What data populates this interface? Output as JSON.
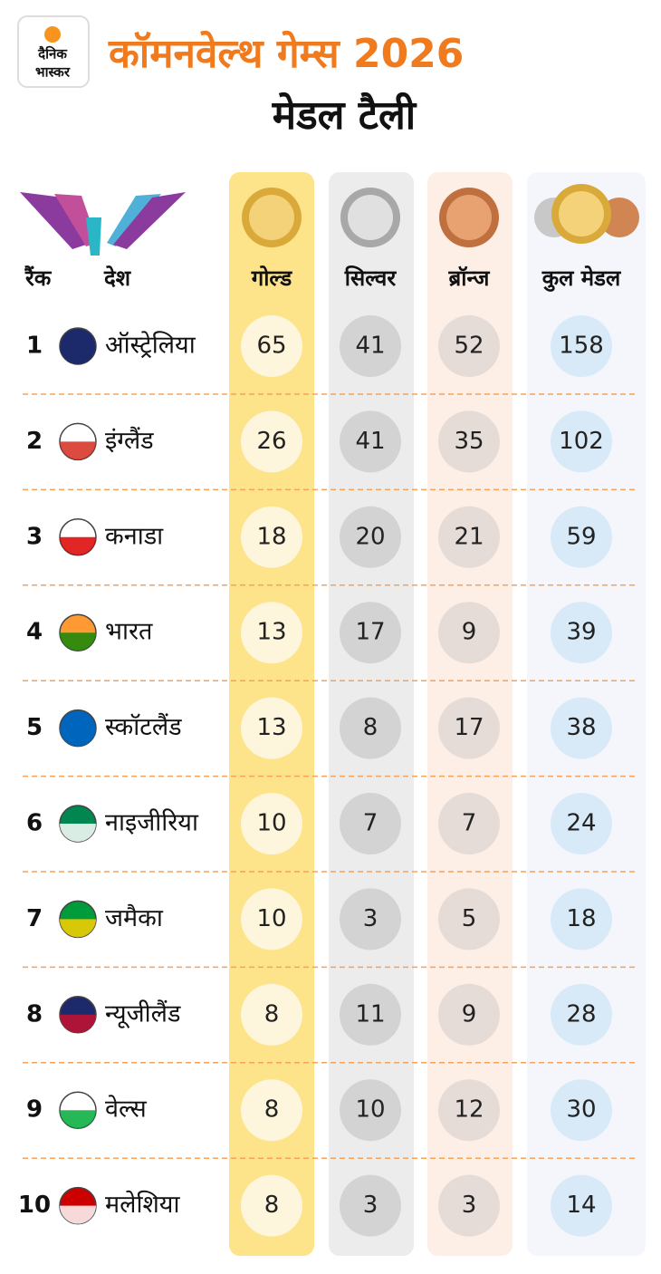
{
  "logo": {
    "line1": "दैनिक",
    "line2": "भास्कर"
  },
  "header": {
    "title": "कॉमनवेल्थ गेम्स 2026",
    "subtitle": "मेडल टैली"
  },
  "table": {
    "columns": [
      "रैंक",
      "देश",
      "गोल्ड",
      "सिल्वर",
      "ब्रॉन्ज",
      "कुल मेडल"
    ],
    "rows": [
      [
        1,
        "ऑस्ट्रेलिया",
        65,
        41,
        52,
        158
      ],
      [
        2,
        "इंग्लैंड",
        26,
        41,
        35,
        102
      ],
      [
        3,
        "कनाडा",
        18,
        20,
        21,
        59
      ],
      [
        4,
        "भारत",
        13,
        17,
        9,
        39
      ],
      [
        5,
        "स्कॉटलैंड",
        13,
        8,
        17,
        38
      ],
      [
        6,
        "नाइजीरिया",
        10,
        7,
        7,
        24
      ],
      [
        7,
        "जमैका",
        10,
        3,
        5,
        18
      ],
      [
        8,
        "न्यूजीलैंड",
        8,
        11,
        9,
        28
      ],
      [
        9,
        "वेल्स",
        8,
        10,
        12,
        30
      ],
      [
        10,
        "मलेशिया",
        8,
        3,
        3,
        14
      ]
    ]
  }
}
